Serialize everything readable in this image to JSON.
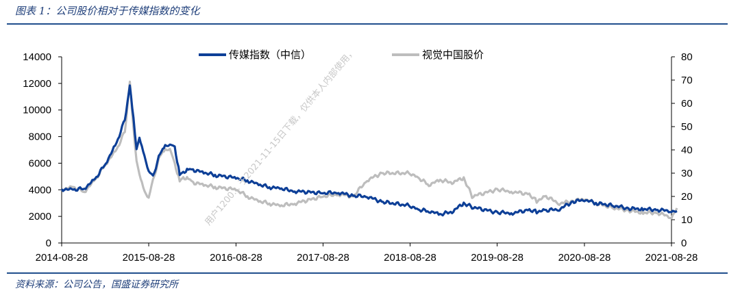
{
  "caption": "图表 1：公司股价相对于传媒指数的变化",
  "source": "资料来源：公司公告，国盛证券研究所",
  "watermark": "用户1200... 于2021-11-15日下载，仅供本人内部使用，",
  "colors": {
    "index": "#0d3f97",
    "stock": "#bdbdbd",
    "rule": "#1f4e8c",
    "text": "#1f3f7a"
  },
  "chart_data": {
    "type": "line",
    "x_ticks": [
      "2014-08-28",
      "2015-08-28",
      "2016-08-28",
      "2017-08-28",
      "2018-08-28",
      "2019-08-28",
      "2020-08-28",
      "2021-08-28"
    ],
    "y_left_ticks": [
      "0",
      "2000",
      "4000",
      "6000",
      "8000",
      "10000",
      "12000",
      "14000"
    ],
    "y_right_ticks": [
      "0",
      "10",
      "20",
      "30",
      "40",
      "50",
      "60",
      "70",
      "80"
    ],
    "ylim_left": [
      0,
      14000
    ],
    "ylim_right": [
      0,
      80
    ],
    "grid": false,
    "legend_position": "top",
    "series": [
      {
        "name": "传媒指数（中信）",
        "axis": "left",
        "color": "#0d3f97",
        "x": [
          "2014-08-28",
          "2014-10-15",
          "2014-12-01",
          "2015-01-15",
          "2015-03-01",
          "2015-04-15",
          "2015-05-20",
          "2015-06-10",
          "2015-06-25",
          "2015-07-08",
          "2015-07-20",
          "2015-08-10",
          "2015-08-28",
          "2015-09-15",
          "2015-10-15",
          "2015-11-05",
          "2015-11-25",
          "2015-12-15",
          "2016-01-05",
          "2016-01-20",
          "2016-02-10",
          "2016-03-01",
          "2016-04-15",
          "2016-06-01",
          "2016-08-28",
          "2016-10-15",
          "2016-12-01",
          "2017-01-15",
          "2017-03-01",
          "2017-05-01",
          "2017-08-28",
          "2017-11-01",
          "2018-01-01",
          "2018-03-01",
          "2018-05-01",
          "2018-08-28",
          "2018-10-01",
          "2018-11-15",
          "2019-01-01",
          "2019-02-20",
          "2019-04-10",
          "2019-05-15",
          "2019-08-28",
          "2019-11-01",
          "2020-01-10",
          "2020-02-10",
          "2020-03-20",
          "2020-05-15",
          "2020-07-10",
          "2020-08-28",
          "2020-10-15",
          "2021-01-01",
          "2021-03-01",
          "2021-05-01",
          "2021-07-01",
          "2021-08-28",
          "2021-09-20"
        ],
        "y": [
          4050,
          4000,
          4100,
          4800,
          6000,
          7500,
          9300,
          11800,
          9500,
          7000,
          8000,
          6500,
          5500,
          5000,
          6800,
          7300,
          7500,
          7200,
          5200,
          5300,
          5600,
          5500,
          5300,
          5100,
          4900,
          4700,
          4400,
          4200,
          4100,
          3900,
          3750,
          3800,
          3550,
          3500,
          3100,
          2800,
          2500,
          2400,
          2150,
          2350,
          3000,
          2700,
          2300,
          2250,
          2500,
          2350,
          2450,
          2550,
          3100,
          3250,
          3000,
          2800,
          2600,
          2550,
          2500,
          2400,
          2400
        ]
      },
      {
        "name": "视觉中国股价",
        "axis": "right",
        "color": "#bdbdbd",
        "x": [
          "2014-08-28",
          "2014-10-15",
          "2014-12-01",
          "2015-01-15",
          "2015-03-01",
          "2015-04-15",
          "2015-05-20",
          "2015-06-10",
          "2015-06-25",
          "2015-07-08",
          "2015-07-20",
          "2015-08-10",
          "2015-08-28",
          "2015-09-15",
          "2015-10-15",
          "2015-11-05",
          "2015-11-25",
          "2015-12-15",
          "2016-01-05",
          "2016-01-20",
          "2016-02-10",
          "2016-03-01",
          "2016-04-15",
          "2016-06-01",
          "2016-08-28",
          "2016-10-15",
          "2016-12-01",
          "2017-01-15",
          "2017-03-01",
          "2017-05-01",
          "2017-08-28",
          "2017-11-01",
          "2018-01-01",
          "2018-03-01",
          "2018-05-01",
          "2018-08-28",
          "2018-10-01",
          "2018-11-15",
          "2019-01-01",
          "2019-02-20",
          "2019-04-10",
          "2019-05-15",
          "2019-08-28",
          "2019-11-01",
          "2020-01-10",
          "2020-02-10",
          "2020-03-20",
          "2020-05-15",
          "2020-07-10",
          "2020-08-28",
          "2020-10-15",
          "2021-01-01",
          "2021-03-01",
          "2021-05-01",
          "2021-07-01",
          "2021-08-28",
          "2021-09-20"
        ],
        "y": [
          23,
          24,
          22,
          27,
          34,
          40,
          48,
          69,
          50,
          35,
          30,
          22,
          20,
          27,
          38,
          40,
          41,
          34,
          27,
          28,
          28,
          26,
          25,
          24,
          23,
          20,
          18,
          17,
          16,
          17,
          20,
          21,
          20,
          27,
          30,
          30,
          28,
          25,
          27,
          26,
          28,
          20,
          23,
          22,
          21,
          18,
          20,
          17,
          18,
          19,
          17,
          15,
          14,
          13,
          13,
          11,
          15
        ]
      }
    ]
  }
}
